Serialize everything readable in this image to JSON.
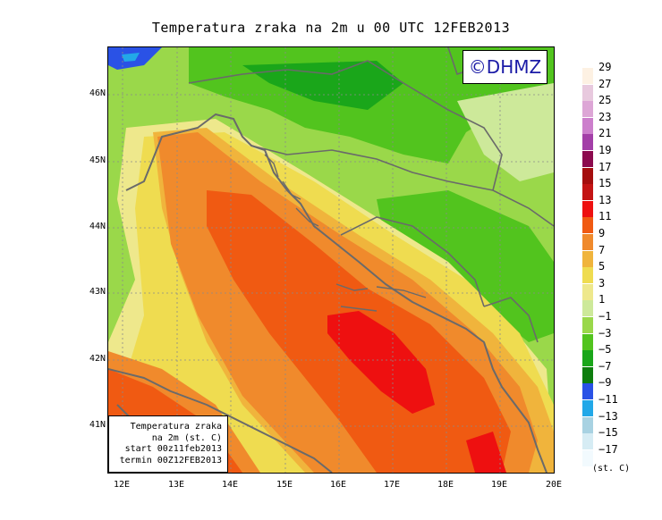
{
  "title": "Temperatura zraka na 2m u 00 UTC 12FEB2013",
  "logo": "©DHMZ",
  "info_box": {
    "line1": "Temperatura zraka",
    "line2": "na 2m (st. C)",
    "line3": "start 00z11feb2013",
    "line4": "termin 00Z12FEB2013"
  },
  "lat_labels": [
    "46N",
    "45N",
    "44N",
    "43N",
    "42N",
    "41N"
  ],
  "lon_labels": [
    "12E",
    "13E",
    "14E",
    "15E",
    "16E",
    "17E",
    "18E",
    "19E",
    "20E"
  ],
  "legend": {
    "unit": "(st. C)",
    "labels": [
      "29",
      "27",
      "25",
      "23",
      "21",
      "19",
      "17",
      "15",
      "13",
      "11",
      "9",
      "7",
      "5",
      "3",
      "1",
      "−1",
      "−3",
      "−5",
      "−7",
      "−9",
      "−11",
      "−13",
      "−15",
      "−17"
    ],
    "colors": [
      "#fdf1e3",
      "#e8c9de",
      "#dda6d6",
      "#cc7fcc",
      "#a33fa8",
      "#8c0a4e",
      "#a50e0e",
      "#c41414",
      "#ee1010",
      "#f05a12",
      "#f08a2c",
      "#f0b43c",
      "#efdc50",
      "#eee88c",
      "#cde99a",
      "#9ad84a",
      "#52c41e",
      "#1aa61a",
      "#0e7e0e",
      "#2a52e6",
      "#22a8e8",
      "#a8d2e2",
      "#d6ecf4",
      "#f2fafe"
    ]
  }
}
